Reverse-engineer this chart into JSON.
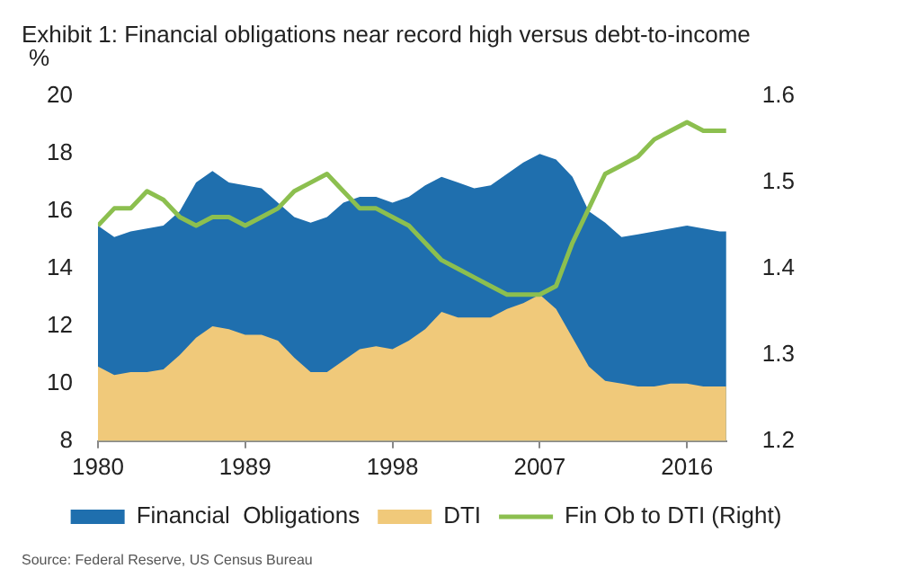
{
  "chart_data": {
    "type": "area",
    "title": "Exhibit 1: Financial obligations near record high versus debt-to-income",
    "ylabel": "%",
    "x": [
      1980,
      1981,
      1982,
      1983,
      1984,
      1985,
      1986,
      1987,
      1988,
      1989,
      1990,
      1991,
      1992,
      1993,
      1994,
      1995,
      1996,
      1997,
      1998,
      1999,
      2000,
      2001,
      2002,
      2003,
      2004,
      2005,
      2006,
      2007,
      2008,
      2009,
      2010,
      2011,
      2012,
      2013,
      2014,
      2015,
      2016,
      2017,
      2018,
      2018.4
    ],
    "series": [
      {
        "name": "Financial  Obligations",
        "type": "area",
        "color": "#1f6fae",
        "values": [
          15.5,
          15.1,
          15.3,
          15.4,
          15.5,
          16.0,
          17.0,
          17.4,
          17.0,
          16.9,
          16.8,
          16.3,
          15.8,
          15.6,
          15.8,
          16.3,
          16.5,
          16.5,
          16.3,
          16.5,
          16.9,
          17.2,
          17.0,
          16.8,
          16.9,
          17.3,
          17.7,
          18.0,
          17.8,
          17.2,
          16.0,
          15.6,
          15.1,
          15.2,
          15.3,
          15.4,
          15.5,
          15.4,
          15.3,
          15.3
        ]
      },
      {
        "name": "DTI",
        "type": "area",
        "color": "#f0c97a",
        "values": [
          10.6,
          10.3,
          10.4,
          10.4,
          10.5,
          11.0,
          11.6,
          12.0,
          11.9,
          11.7,
          11.7,
          11.5,
          10.9,
          10.4,
          10.4,
          10.8,
          11.2,
          11.3,
          11.2,
          11.5,
          11.9,
          12.5,
          12.3,
          12.3,
          12.3,
          12.6,
          12.8,
          13.1,
          12.6,
          11.6,
          10.6,
          10.1,
          10.0,
          9.9,
          9.9,
          10.0,
          10.0,
          9.9,
          9.9,
          9.9
        ]
      },
      {
        "name": "Fin Ob to DTI (Right)",
        "type": "line",
        "axis": "y2",
        "color": "#8cbf4f",
        "values": [
          1.45,
          1.47,
          1.47,
          1.49,
          1.48,
          1.46,
          1.45,
          1.46,
          1.46,
          1.45,
          1.46,
          1.47,
          1.49,
          1.5,
          1.51,
          1.49,
          1.47,
          1.47,
          1.46,
          1.45,
          1.43,
          1.41,
          1.4,
          1.39,
          1.38,
          1.37,
          1.37,
          1.37,
          1.38,
          1.43,
          1.47,
          1.51,
          1.52,
          1.53,
          1.55,
          1.56,
          1.57,
          1.56,
          1.56,
          1.56
        ]
      }
    ],
    "xlim": [
      1980,
      2018.4
    ],
    "xticks": [
      1980,
      1989,
      1998,
      2007,
      2016
    ],
    "ylim": [
      8,
      20
    ],
    "yticks": [
      8,
      10,
      12,
      14,
      16,
      18,
      20
    ],
    "y2lim": [
      1.2,
      1.6
    ],
    "y2ticks": [
      {
        "value": 1.2,
        "label": "1.2"
      },
      {
        "value": 1.3,
        "label": "1.3"
      },
      {
        "value": 1.4,
        "label": "1.4"
      },
      {
        "value": 1.5,
        "label": "1.5"
      },
      {
        "value": 1.6,
        "label": "1.6"
      }
    ],
    "grid": false,
    "legend": "bottom",
    "annotations": [
      "Source: Federal Reserve, US Census Bureau"
    ]
  }
}
